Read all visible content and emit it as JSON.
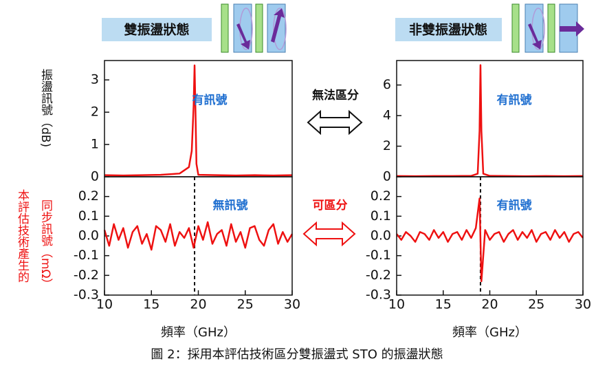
{
  "header": {
    "left": "雙振盪狀態",
    "right": "非雙振盪狀態"
  },
  "labels": {
    "y_top": "振盪訊號（dB)",
    "y_bottom_1": "本評估技術產生的",
    "y_bottom_2": "同步訊號（mΩ）",
    "compare_top": "無法區分",
    "compare_bottom": "可區分"
  },
  "caption": "圖 2：採用本評估技術區分雙振盪式 STO 的振盪狀態",
  "chart_data": [
    {
      "type": "line",
      "annotation": "有訊號",
      "color": "#ee1111",
      "x": [
        10,
        12,
        14,
        16,
        18,
        19,
        19.3,
        19.5,
        19.6,
        19.7,
        19.8,
        20,
        22,
        24,
        26,
        28,
        30
      ],
      "values": [
        0.05,
        0.04,
        0.05,
        0.06,
        0.1,
        0.3,
        0.8,
        2.2,
        3.45,
        2.0,
        0.4,
        0.06,
        0.05,
        0.04,
        0.05,
        0.04,
        0.05
      ],
      "xlim": [
        10,
        30
      ],
      "ylim": [
        0,
        3.6
      ],
      "yticks": [
        0,
        1,
        2,
        3
      ]
    },
    {
      "type": "line",
      "annotation": "無訊號",
      "color": "#ee1111",
      "x_label": "頻率（GHz）",
      "vline": 19.6,
      "x": [
        10,
        10.5,
        11,
        11.5,
        12,
        12.5,
        13,
        13.5,
        14,
        14.5,
        15,
        15.5,
        16,
        16.5,
        17,
        17.5,
        18,
        18.5,
        19,
        19.5,
        20,
        20.5,
        21,
        21.5,
        22,
        22.5,
        23,
        23.5,
        24,
        24.5,
        25,
        25.5,
        26,
        26.5,
        27,
        27.5,
        28,
        28.5,
        29,
        29.5,
        30
      ],
      "values": [
        0.03,
        -0.05,
        0.06,
        -0.02,
        0.04,
        -0.06,
        0.02,
        0.05,
        -0.04,
        0.01,
        -0.07,
        0.05,
        0.03,
        -0.03,
        0.06,
        -0.05,
        0.02,
        -0.01,
        0.04,
        -0.06,
        0.05,
        -0.02,
        0.07,
        -0.04,
        0.01,
        0.03,
        -0.05,
        0.06,
        -0.03,
        0.02,
        -0.06,
        0.04,
        0.05,
        -0.02,
        -0.05,
        0.03,
        0.06,
        -0.04,
        0.02,
        -0.03,
        0.01
      ],
      "xlim": [
        10,
        30
      ],
      "ylim": [
        -0.3,
        0.3
      ],
      "xticks": [
        10,
        15,
        20,
        25,
        30
      ],
      "yticks": [
        {
          "value": 0.2,
          "label": "0.2"
        },
        {
          "value": 0.1,
          "label": "0.1"
        },
        {
          "value": 0,
          "label": "0.0"
        },
        {
          "value": -0.1,
          "label": "-0.1"
        },
        {
          "value": -0.2,
          "label": "-0.2"
        },
        {
          "value": -0.3,
          "label": "-0.3"
        }
      ]
    },
    {
      "type": "line",
      "annotation": "有訊號",
      "color": "#ee1111",
      "x": [
        10,
        12,
        14,
        16,
        18,
        18.7,
        18.9,
        19.0,
        19.1,
        19.3,
        20,
        22,
        24,
        26,
        28,
        30
      ],
      "values": [
        0.05,
        0.04,
        0.05,
        0.05,
        0.06,
        0.2,
        3.0,
        7.3,
        3.0,
        0.2,
        0.06,
        0.05,
        0.04,
        0.05,
        0.04,
        0.05
      ],
      "xlim": [
        10,
        30
      ],
      "ylim": [
        0,
        7.6
      ],
      "yticks": [
        0,
        2,
        4,
        6
      ]
    },
    {
      "type": "line",
      "annotation": "有訊號",
      "color": "#ee1111",
      "x_label": "頻率（GHz）",
      "vline": 19.0,
      "x": [
        10,
        10.5,
        11,
        11.5,
        12,
        12.5,
        13,
        13.5,
        14,
        14.5,
        15,
        15.5,
        16,
        16.5,
        17,
        17.5,
        18,
        18.5,
        18.9,
        19.1,
        19.5,
        20,
        20.5,
        21,
        21.5,
        22,
        22.5,
        23,
        23.5,
        24,
        24.5,
        25,
        25.5,
        26,
        26.5,
        27,
        27.5,
        28,
        28.5,
        29,
        29.5,
        30
      ],
      "values": [
        0.01,
        -0.02,
        0.02,
        0.0,
        -0.03,
        0.02,
        0.01,
        -0.02,
        0.03,
        -0.01,
        0.02,
        -0.03,
        0.01,
        0.02,
        -0.02,
        0.03,
        -0.01,
        0.04,
        0.19,
        -0.23,
        0.03,
        -0.02,
        0.01,
        0.02,
        -0.03,
        0.01,
        0.03,
        -0.02,
        0.02,
        -0.01,
        0.03,
        -0.03,
        0.01,
        0.02,
        -0.02,
        0.03,
        -0.01,
        0.02,
        -0.03,
        0.01,
        0.02,
        -0.01
      ],
      "xlim": [
        10,
        30
      ],
      "ylim": [
        -0.3,
        0.3
      ],
      "xticks": [
        10,
        15,
        20,
        25,
        30
      ],
      "yticks": [
        {
          "value": 0.2,
          "label": "0.2"
        },
        {
          "value": 0.1,
          "label": "0.1"
        },
        {
          "value": 0,
          "label": "0.0"
        },
        {
          "value": -0.1,
          "label": "-0.1"
        },
        {
          "value": -0.2,
          "label": "-0.2"
        },
        {
          "value": -0.3,
          "label": "-0.3"
        }
      ]
    }
  ]
}
